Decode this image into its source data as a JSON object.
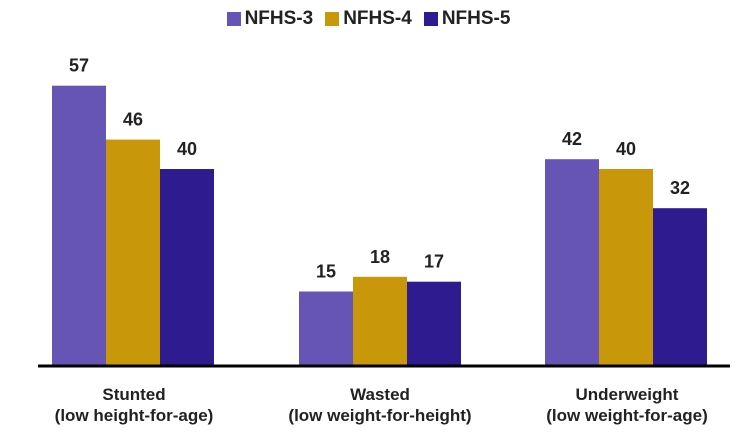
{
  "chart_data": {
    "type": "bar",
    "categories": [
      {
        "name": "Stunted",
        "subtitle": "(low height-for-age)"
      },
      {
        "name": "Wasted",
        "subtitle": "(low weight-for-height)"
      },
      {
        "name": "Underweight",
        "subtitle": "(low weight-for-age)"
      }
    ],
    "series": [
      {
        "name": "NFHS-3",
        "color": "#6655b5",
        "values": [
          57,
          15,
          42
        ]
      },
      {
        "name": "NFHS-4",
        "color": "#c9980a",
        "values": [
          46,
          18,
          40
        ]
      },
      {
        "name": "NFHS-5",
        "color": "#2e1b8f",
        "values": [
          40,
          17,
          32
        ]
      }
    ],
    "ylim": [
      0,
      60
    ],
    "grid": false,
    "legend_position": "top-center"
  }
}
